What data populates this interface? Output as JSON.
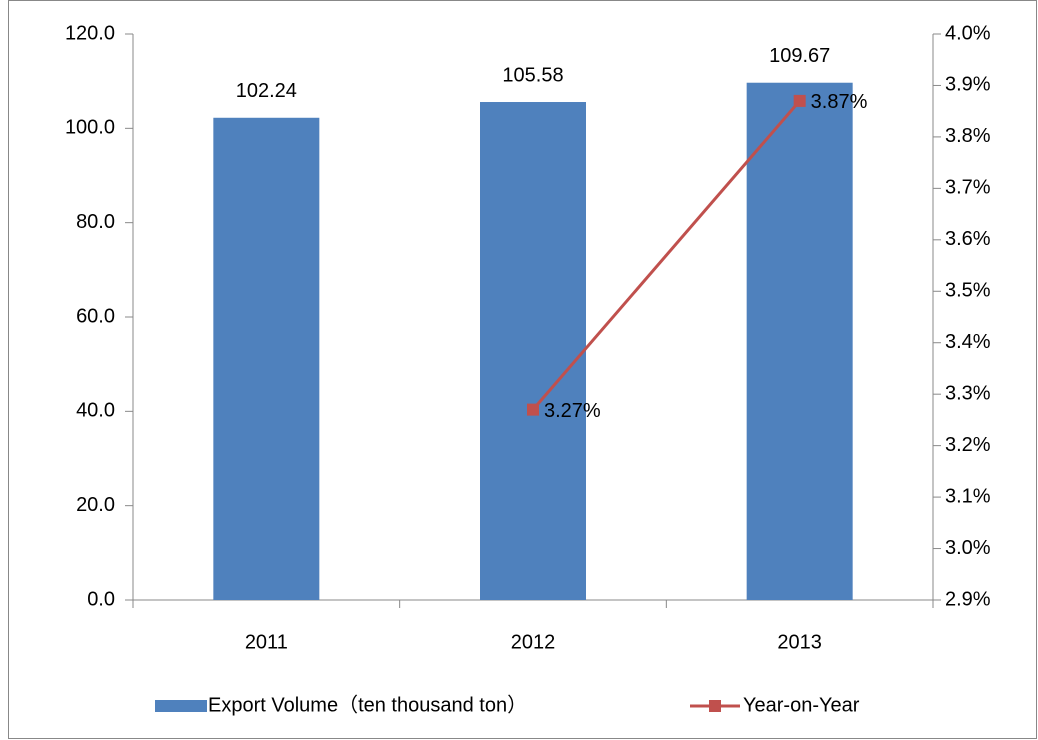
{
  "chart_data": {
    "type": "bar",
    "categories": [
      "2011",
      "2012",
      "2013"
    ],
    "series": [
      {
        "name": "Export Volume（ten thousand ton）",
        "type": "bar",
        "color": "#4f81bd",
        "values": [
          102.24,
          105.58,
          109.67
        ]
      },
      {
        "name": "Year-on-Year",
        "type": "line",
        "axis": "y2",
        "color": "#c0504d",
        "values": [
          null,
          3.27,
          3.87
        ],
        "value_labels": [
          null,
          "3.27%",
          "3.87%"
        ]
      }
    ],
    "ylim": [
      0,
      120
    ],
    "yticks": [
      {
        "value": 0,
        "label": "0.0"
      },
      {
        "value": 20,
        "label": "20.0"
      },
      {
        "value": 40,
        "label": "40.0"
      },
      {
        "value": 60,
        "label": "60.0"
      },
      {
        "value": 80,
        "label": "80.0"
      },
      {
        "value": 100,
        "label": "100.0"
      },
      {
        "value": 120,
        "label": "120.0"
      }
    ],
    "y2lim": [
      2.9,
      4.0
    ],
    "y2ticks": [
      {
        "value": 2.9,
        "label": "2.9%"
      },
      {
        "value": 3.0,
        "label": "3.0%"
      },
      {
        "value": 3.1,
        "label": "3.1%"
      },
      {
        "value": 3.2,
        "label": "3.2%"
      },
      {
        "value": 3.3,
        "label": "3.3%"
      },
      {
        "value": 3.4,
        "label": "3.4%"
      },
      {
        "value": 3.5,
        "label": "3.5%"
      },
      {
        "value": 3.6,
        "label": "3.6%"
      },
      {
        "value": 3.7,
        "label": "3.7%"
      },
      {
        "value": 3.8,
        "label": "3.8%"
      },
      {
        "value": 3.9,
        "label": "3.9%"
      },
      {
        "value": 4.0,
        "label": "4.0%"
      }
    ],
    "legend": "bottom"
  }
}
